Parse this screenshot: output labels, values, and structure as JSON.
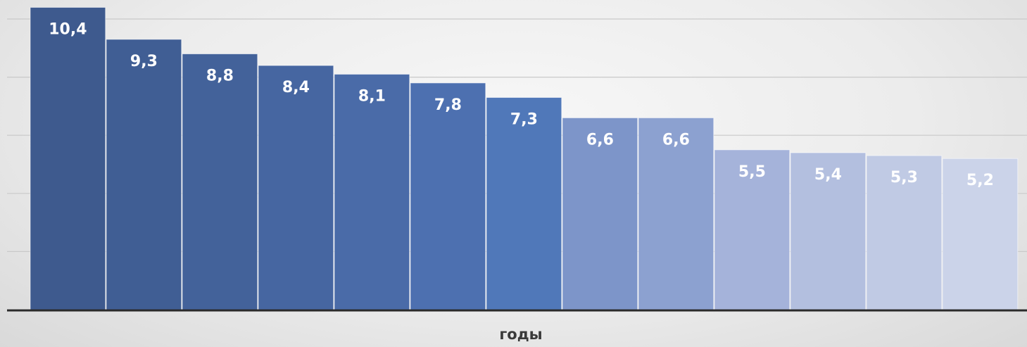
{
  "chart_data": {
    "type": "bar",
    "title": "",
    "xlabel": "годы",
    "ylabel": "",
    "ylim": [
      0,
      10.5
    ],
    "grid": true,
    "legend": "none",
    "data_labels": [
      "10,4",
      "9,3",
      "8,8",
      "8,4",
      "8,1",
      "7,8",
      "7,3",
      "6,6",
      "6,6",
      "5,5",
      "5,4",
      "5,3",
      "5,2"
    ],
    "values": [
      10.4,
      9.3,
      8.8,
      8.4,
      8.1,
      7.8,
      7.3,
      6.6,
      6.6,
      5.5,
      5.4,
      5.3,
      5.2
    ],
    "colors": [
      "#3e5a8e",
      "#405e94",
      "#43629a",
      "#4666a1",
      "#4a6ba8",
      "#4d70b0",
      "#5078b9",
      "#7d95c9",
      "#8ca1d0",
      "#a5b3da",
      "#b3bfdf",
      "#c0cae4",
      "#cbd3e9"
    ]
  }
}
